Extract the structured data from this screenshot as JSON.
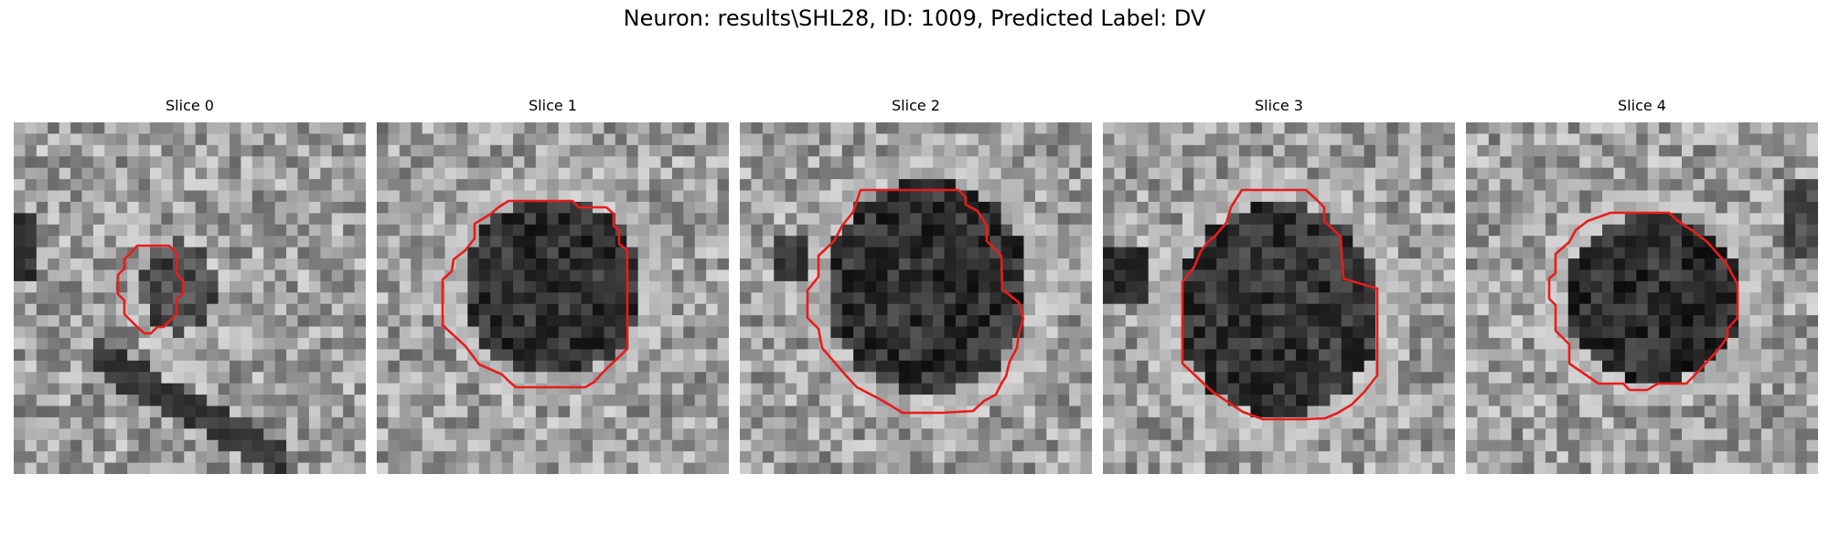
{
  "figure": {
    "suptitle": "Neuron: results\\SHL28, ID: 1009, Predicted Label: DV",
    "contour_color": "#e81c1c",
    "slices": [
      {
        "title": "Slice 0",
        "image_icon": "grayscale-microscopy-slice-icon"
      },
      {
        "title": "Slice 1",
        "image_icon": "grayscale-microscopy-slice-icon"
      },
      {
        "title": "Slice 2",
        "image_icon": "grayscale-microscopy-slice-icon"
      },
      {
        "title": "Slice 3",
        "image_icon": "grayscale-microscopy-slice-icon"
      },
      {
        "title": "Slice 4",
        "image_icon": "grayscale-microscopy-slice-icon"
      }
    ]
  }
}
